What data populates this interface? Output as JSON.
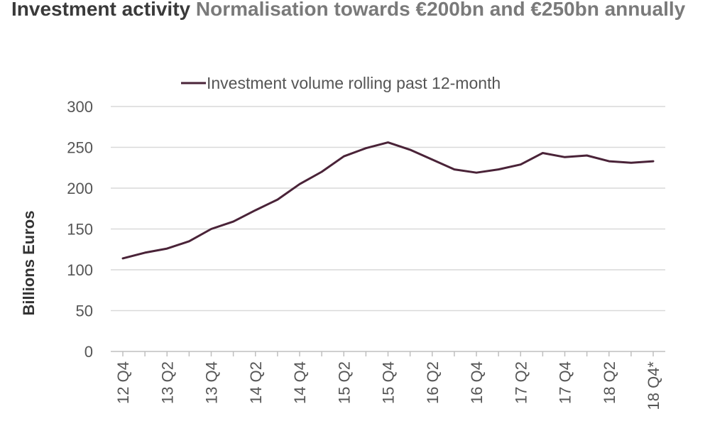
{
  "header": {
    "title": "Investment activity",
    "subtitle": "Normalisation towards €200bn and €250bn annually"
  },
  "chart_data": {
    "type": "line",
    "ylabel": "Billions Euros",
    "xlabel": "",
    "ylim": [
      0,
      300
    ],
    "y_ticks": [
      0,
      50,
      100,
      150,
      200,
      250,
      300
    ],
    "grid": true,
    "legend_placement": "top-center",
    "x": [
      "12 Q4",
      "13 Q1",
      "13 Q2",
      "13 Q3",
      "13 Q4",
      "14 Q1",
      "14 Q2",
      "14 Q3",
      "14 Q4",
      "15 Q1",
      "15 Q2",
      "15 Q3",
      "15 Q4",
      "16 Q1",
      "16 Q2",
      "16 Q3",
      "16 Q4",
      "17 Q1",
      "17 Q2",
      "17 Q3",
      "17 Q4",
      "18 Q1",
      "18 Q2",
      "18 Q3",
      "18 Q4*"
    ],
    "x_tick_labels": [
      "12 Q4",
      "13 Q2",
      "13 Q4",
      "14 Q2",
      "14 Q4",
      "15 Q2",
      "15 Q4",
      "16 Q2",
      "16 Q4",
      "17 Q2",
      "17 Q4",
      "18 Q2",
      "18 Q4*"
    ],
    "series": [
      {
        "name": "Investment volume rolling past 12-month",
        "color": "#4a2338",
        "values": [
          114,
          121,
          126,
          135,
          150,
          159,
          173,
          186,
          205,
          220,
          239,
          249,
          256,
          247,
          235,
          223,
          219,
          223,
          229,
          243,
          238,
          240,
          233,
          231,
          233
        ]
      }
    ]
  }
}
